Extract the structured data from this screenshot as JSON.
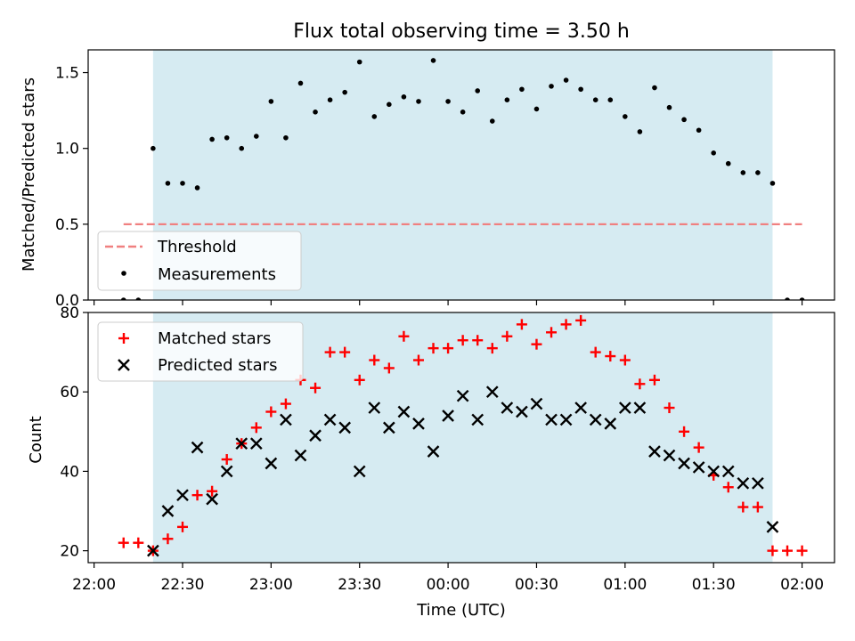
{
  "chart_data": [
    {
      "type": "scatter",
      "title": "Flux total observing time = 3.50 h",
      "xlabel": "",
      "ylabel": "Matched/Predicted stars",
      "xlim": [
        "21:58",
        "02:11"
      ],
      "ylim": [
        0,
        1.65
      ],
      "yticks": [
        0.0,
        0.5,
        1.0,
        1.5
      ],
      "ytick_labels": [
        "0.0",
        "0.5",
        "1.0",
        "1.5"
      ],
      "shaded_span": [
        "22:20",
        "01:50"
      ],
      "legend_position": "lower-left",
      "threshold": {
        "name": "Threshold",
        "y": 0.5,
        "x_start": "22:10",
        "x_end": "02:00",
        "color": "#f08080",
        "style": "dashed"
      },
      "series": [
        {
          "name": "Measurements",
          "marker": "dot",
          "color": "#000000",
          "x": [
            "22:10",
            "22:15",
            "22:20",
            "22:25",
            "22:30",
            "22:35",
            "22:40",
            "22:45",
            "22:50",
            "22:55",
            "23:00",
            "23:05",
            "23:10",
            "23:15",
            "23:20",
            "23:25",
            "23:30",
            "23:35",
            "23:40",
            "23:45",
            "23:50",
            "23:55",
            "00:00",
            "00:05",
            "00:10",
            "00:15",
            "00:20",
            "00:25",
            "00:30",
            "00:35",
            "00:40",
            "00:45",
            "00:50",
            "00:55",
            "01:00",
            "01:05",
            "01:10",
            "01:15",
            "01:20",
            "01:25",
            "01:30",
            "01:35",
            "01:40",
            "01:45",
            "01:50",
            "01:55",
            "02:00"
          ],
          "y": [
            0.0,
            0.0,
            1.0,
            0.77,
            0.77,
            0.74,
            1.06,
            1.07,
            1.0,
            1.08,
            1.31,
            1.07,
            1.43,
            1.24,
            1.32,
            1.37,
            1.57,
            1.21,
            1.29,
            1.34,
            1.31,
            1.58,
            1.31,
            1.24,
            1.38,
            1.18,
            1.32,
            1.39,
            1.26,
            1.41,
            1.45,
            1.39,
            1.32,
            1.32,
            1.21,
            1.11,
            1.4,
            1.27,
            1.19,
            1.12,
            0.97,
            0.9,
            0.84,
            0.84,
            0.77,
            0.0,
            0.0
          ]
        }
      ]
    },
    {
      "type": "scatter",
      "title": "",
      "xlabel": "Time (UTC)",
      "ylabel": "Count",
      "xlim": [
        "21:58",
        "02:11"
      ],
      "ylim": [
        17,
        80
      ],
      "yticks": [
        20,
        40,
        60,
        80
      ],
      "ytick_labels": [
        "20",
        "40",
        "60",
        "80"
      ],
      "xticks": [
        "22:00",
        "22:30",
        "23:00",
        "23:30",
        "00:00",
        "00:30",
        "01:00",
        "01:30",
        "02:00"
      ],
      "shaded_span": [
        "22:20",
        "01:50"
      ],
      "legend_position": "upper-left",
      "series": [
        {
          "name": "Matched stars",
          "marker": "plus",
          "color": "#ff0000",
          "x": [
            "22:10",
            "22:15",
            "22:20",
            "22:25",
            "22:30",
            "22:35",
            "22:40",
            "22:45",
            "22:50",
            "22:55",
            "23:00",
            "23:05",
            "23:10",
            "23:15",
            "23:20",
            "23:25",
            "23:30",
            "23:35",
            "23:40",
            "23:45",
            "23:50",
            "23:55",
            "00:00",
            "00:05",
            "00:10",
            "00:15",
            "00:20",
            "00:25",
            "00:30",
            "00:35",
            "00:40",
            "00:45",
            "00:50",
            "00:55",
            "01:00",
            "01:05",
            "01:10",
            "01:15",
            "01:20",
            "01:25",
            "01:30",
            "01:35",
            "01:40",
            "01:45",
            "01:50",
            "01:55",
            "02:00"
          ],
          "y": [
            22,
            22,
            20,
            23,
            26,
            34,
            35,
            43,
            47,
            51,
            55,
            57,
            63,
            61,
            70,
            70,
            63,
            68,
            66,
            74,
            68,
            71,
            71,
            73,
            73,
            71,
            74,
            77,
            72,
            75,
            77,
            78,
            70,
            69,
            68,
            62,
            63,
            56,
            50,
            46,
            39,
            36,
            31,
            31,
            20,
            20,
            20
          ]
        },
        {
          "name": "Predicted stars",
          "marker": "x",
          "color": "#000000",
          "x": [
            "22:20",
            "22:25",
            "22:30",
            "22:35",
            "22:40",
            "22:45",
            "22:50",
            "22:55",
            "23:00",
            "23:05",
            "23:10",
            "23:15",
            "23:20",
            "23:25",
            "23:30",
            "23:35",
            "23:40",
            "23:45",
            "23:50",
            "23:55",
            "00:00",
            "00:05",
            "00:10",
            "00:15",
            "00:20",
            "00:25",
            "00:30",
            "00:35",
            "00:40",
            "00:45",
            "00:50",
            "00:55",
            "01:00",
            "01:05",
            "01:10",
            "01:15",
            "01:20",
            "01:25",
            "01:30",
            "01:35",
            "01:40",
            "01:45",
            "01:50"
          ],
          "y": [
            20,
            30,
            34,
            46,
            33,
            40,
            47,
            47,
            42,
            53,
            44,
            49,
            53,
            51,
            40,
            56,
            51,
            55,
            52,
            45,
            54,
            59,
            53,
            60,
            56,
            55,
            57,
            53,
            53,
            56,
            53,
            52,
            56,
            56,
            45,
            44,
            42,
            41,
            40,
            40,
            37,
            37,
            26
          ]
        }
      ]
    }
  ]
}
